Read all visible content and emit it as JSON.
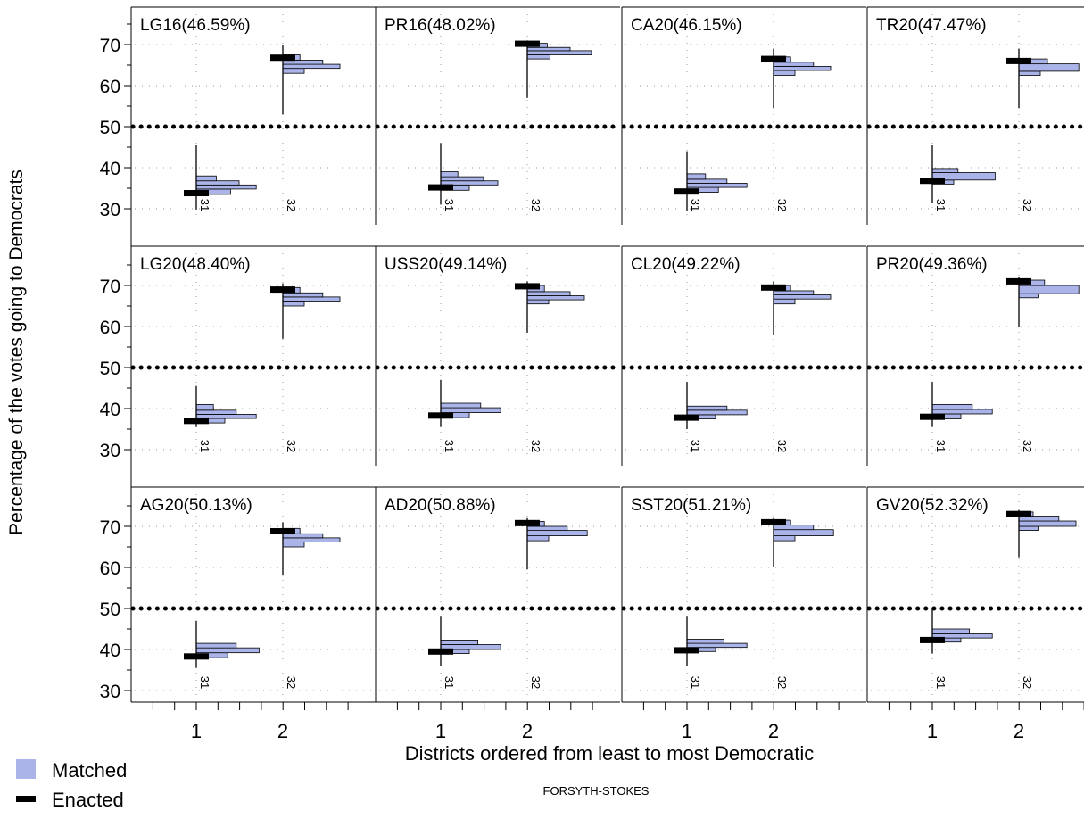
{
  "chart_data": {
    "type": "histogram-grid",
    "ylabel": "Percentage of the votes going to Democrats",
    "xlabel": "Districts ordered from least to most Democratic",
    "footer": "FORSYTH-STOKES",
    "legend": {
      "placement": "bottom-left",
      "items": [
        {
          "label": "Matched",
          "kind": "box"
        },
        {
          "label": "Enacted",
          "kind": "bar"
        }
      ]
    },
    "ylim": [
      28,
      77
    ],
    "y_ticks": [
      30,
      40,
      50,
      60,
      70
    ],
    "x_ticks": [
      1,
      2
    ],
    "threshold": 50,
    "district_labels": [
      "31",
      "32"
    ],
    "colors": {
      "matched": "#aab4e8",
      "enacted": "#000000",
      "threshold": "#000000",
      "grid": "#999999"
    },
    "panels": [
      {
        "title": "LG16(46.59%)",
        "enacted": [
          33.8,
          66.8
        ],
        "spikes": [
          [
            29.8,
            45.5
          ],
          [
            53.0,
            70.0
          ]
        ],
        "hist": [
          [
            [
              33.5,
              34.8,
              0.24
            ],
            [
              34.8,
              35.8,
              0.42
            ],
            [
              35.8,
              36.8,
              0.3
            ],
            [
              36.8,
              38.0,
              0.14
            ]
          ],
          [
            [
              63.0,
              64.2,
              0.15
            ],
            [
              64.2,
              65.2,
              0.4
            ],
            [
              65.2,
              66.2,
              0.28
            ],
            [
              66.2,
              67.5,
              0.12
            ]
          ]
        ]
      },
      {
        "title": "PR16(48.02%)",
        "enacted": [
          35.2,
          70.2
        ],
        "spikes": [
          [
            31.0,
            46.0
          ],
          [
            57.0,
            71.0
          ]
        ],
        "hist": [
          [
            [
              34.5,
              35.8,
              0.2
            ],
            [
              35.8,
              36.8,
              0.4
            ],
            [
              36.8,
              37.8,
              0.3
            ],
            [
              37.8,
              39.0,
              0.12
            ]
          ],
          [
            [
              66.5,
              67.5,
              0.16
            ],
            [
              67.5,
              68.5,
              0.45
            ],
            [
              68.5,
              69.3,
              0.3
            ],
            [
              69.3,
              70.3,
              0.14
            ]
          ]
        ]
      },
      {
        "title": "CA20(46.15%)",
        "enacted": [
          34.2,
          66.5
        ],
        "spikes": [
          [
            29.5,
            44.0
          ],
          [
            54.5,
            69.0
          ]
        ],
        "hist": [
          [
            [
              34.0,
              35.2,
              0.22
            ],
            [
              35.2,
              36.2,
              0.42
            ],
            [
              36.2,
              37.2,
              0.28
            ],
            [
              37.2,
              38.5,
              0.13
            ]
          ],
          [
            [
              62.5,
              63.7,
              0.15
            ],
            [
              63.7,
              64.7,
              0.4
            ],
            [
              64.7,
              65.7,
              0.28
            ],
            [
              65.7,
              67.0,
              0.12
            ]
          ]
        ]
      },
      {
        "title": "TR20(47.47%)",
        "enacted": [
          36.8,
          66.0
        ],
        "spikes": [
          [
            31.5,
            45.5
          ],
          [
            54.5,
            69.0
          ]
        ],
        "hist": [
          [
            [
              36.0,
              37.0,
              0.15
            ],
            [
              37.0,
              38.8,
              0.44
            ],
            [
              38.8,
              39.8,
              0.18
            ]
          ],
          [
            [
              62.5,
              63.5,
              0.15
            ],
            [
              63.5,
              65.3,
              0.42
            ],
            [
              65.3,
              66.5,
              0.2
            ]
          ]
        ]
      },
      {
        "title": "LG20(48.40%)",
        "enacted": [
          37.0,
          69.0
        ],
        "spikes": [
          [
            35.5,
            45.5
          ],
          [
            57.0,
            70.5
          ]
        ],
        "hist": [
          [
            [
              36.5,
              37.6,
              0.2
            ],
            [
              37.6,
              38.6,
              0.42
            ],
            [
              38.6,
              39.6,
              0.28
            ],
            [
              39.6,
              41.0,
              0.12
            ]
          ],
          [
            [
              65.0,
              66.2,
              0.15
            ],
            [
              66.2,
              67.2,
              0.4
            ],
            [
              67.2,
              68.2,
              0.28
            ],
            [
              68.2,
              69.5,
              0.12
            ]
          ]
        ]
      },
      {
        "title": "USS20(49.14%)",
        "enacted": [
          38.3,
          69.8
        ],
        "spikes": [
          [
            35.5,
            47.0
          ],
          [
            58.5,
            71.0
          ]
        ],
        "hist": [
          [
            [
              37.8,
              39.0,
              0.2
            ],
            [
              39.0,
              40.2,
              0.42
            ],
            [
              40.2,
              41.3,
              0.28
            ]
          ],
          [
            [
              65.5,
              66.5,
              0.15
            ],
            [
              66.5,
              67.5,
              0.4
            ],
            [
              67.5,
              68.5,
              0.3
            ],
            [
              68.5,
              70.0,
              0.12
            ]
          ]
        ]
      },
      {
        "title": "CL20(49.22%)",
        "enacted": [
          37.8,
          69.5
        ],
        "spikes": [
          [
            35.0,
            46.5
          ],
          [
            58.0,
            71.0
          ]
        ],
        "hist": [
          [
            [
              37.5,
              38.5,
              0.2
            ],
            [
              38.5,
              39.6,
              0.42
            ],
            [
              39.6,
              40.6,
              0.28
            ]
          ],
          [
            [
              65.5,
              66.7,
              0.15
            ],
            [
              66.7,
              67.7,
              0.4
            ],
            [
              67.7,
              68.7,
              0.28
            ],
            [
              68.7,
              70.0,
              0.12
            ]
          ]
        ]
      },
      {
        "title": "PR20(49.36%)",
        "enacted": [
          38.0,
          71.0
        ],
        "spikes": [
          [
            35.5,
            46.5
          ],
          [
            60.0,
            72.0
          ]
        ],
        "hist": [
          [
            [
              37.5,
              38.7,
              0.2
            ],
            [
              38.7,
              39.8,
              0.42
            ],
            [
              39.8,
              41.0,
              0.28
            ]
          ],
          [
            [
              67.0,
              68.0,
              0.14
            ],
            [
              68.0,
              70.0,
              0.42
            ],
            [
              70.0,
              71.3,
              0.18
            ]
          ]
        ]
      },
      {
        "title": "AG20(50.13%)",
        "enacted": [
          38.3,
          68.8
        ],
        "spikes": [
          [
            35.5,
            47.0
          ],
          [
            58.0,
            71.0
          ]
        ],
        "hist": [
          [
            [
              38.0,
              39.2,
              0.22
            ],
            [
              39.2,
              40.4,
              0.44
            ],
            [
              40.4,
              41.5,
              0.28
            ]
          ],
          [
            [
              65.0,
              66.2,
              0.15
            ],
            [
              66.2,
              67.2,
              0.4
            ],
            [
              67.2,
              68.2,
              0.28
            ],
            [
              68.2,
              69.5,
              0.12
            ]
          ]
        ]
      },
      {
        "title": "AD20(50.88%)",
        "enacted": [
          39.5,
          70.8
        ],
        "spikes": [
          [
            36.0,
            48.0
          ],
          [
            59.5,
            72.0
          ]
        ],
        "hist": [
          [
            [
              39.0,
              40.0,
              0.2
            ],
            [
              40.0,
              41.2,
              0.42
            ],
            [
              41.2,
              42.3,
              0.26
            ]
          ],
          [
            [
              66.5,
              67.7,
              0.15
            ],
            [
              67.7,
              69.0,
              0.42
            ],
            [
              69.0,
              70.0,
              0.28
            ],
            [
              70.0,
              71.2,
              0.12
            ]
          ]
        ]
      },
      {
        "title": "SST20(51.21%)",
        "enacted": [
          39.8,
          71.0
        ],
        "spikes": [
          [
            36.0,
            48.0
          ],
          [
            60.0,
            72.0
          ]
        ],
        "hist": [
          [
            [
              39.5,
              40.5,
              0.2
            ],
            [
              40.5,
              41.5,
              0.42
            ],
            [
              41.5,
              42.5,
              0.26
            ]
          ],
          [
            [
              66.5,
              67.7,
              0.15
            ],
            [
              67.7,
              69.2,
              0.42
            ],
            [
              69.2,
              70.3,
              0.28
            ],
            [
              70.3,
              71.5,
              0.12
            ]
          ]
        ]
      },
      {
        "title": "GV20(52.32%)",
        "enacted": [
          42.3,
          73.0
        ],
        "spikes": [
          [
            39.0,
            50.0
          ],
          [
            62.5,
            74.0
          ]
        ],
        "hist": [
          [
            [
              41.8,
              42.8,
              0.2
            ],
            [
              42.8,
              43.8,
              0.42
            ],
            [
              43.8,
              45.0,
              0.26
            ]
          ],
          [
            [
              69.0,
              70.0,
              0.14
            ],
            [
              70.0,
              71.3,
              0.4
            ],
            [
              71.3,
              72.5,
              0.28
            ],
            [
              72.5,
              73.5,
              0.1
            ]
          ]
        ]
      }
    ]
  }
}
